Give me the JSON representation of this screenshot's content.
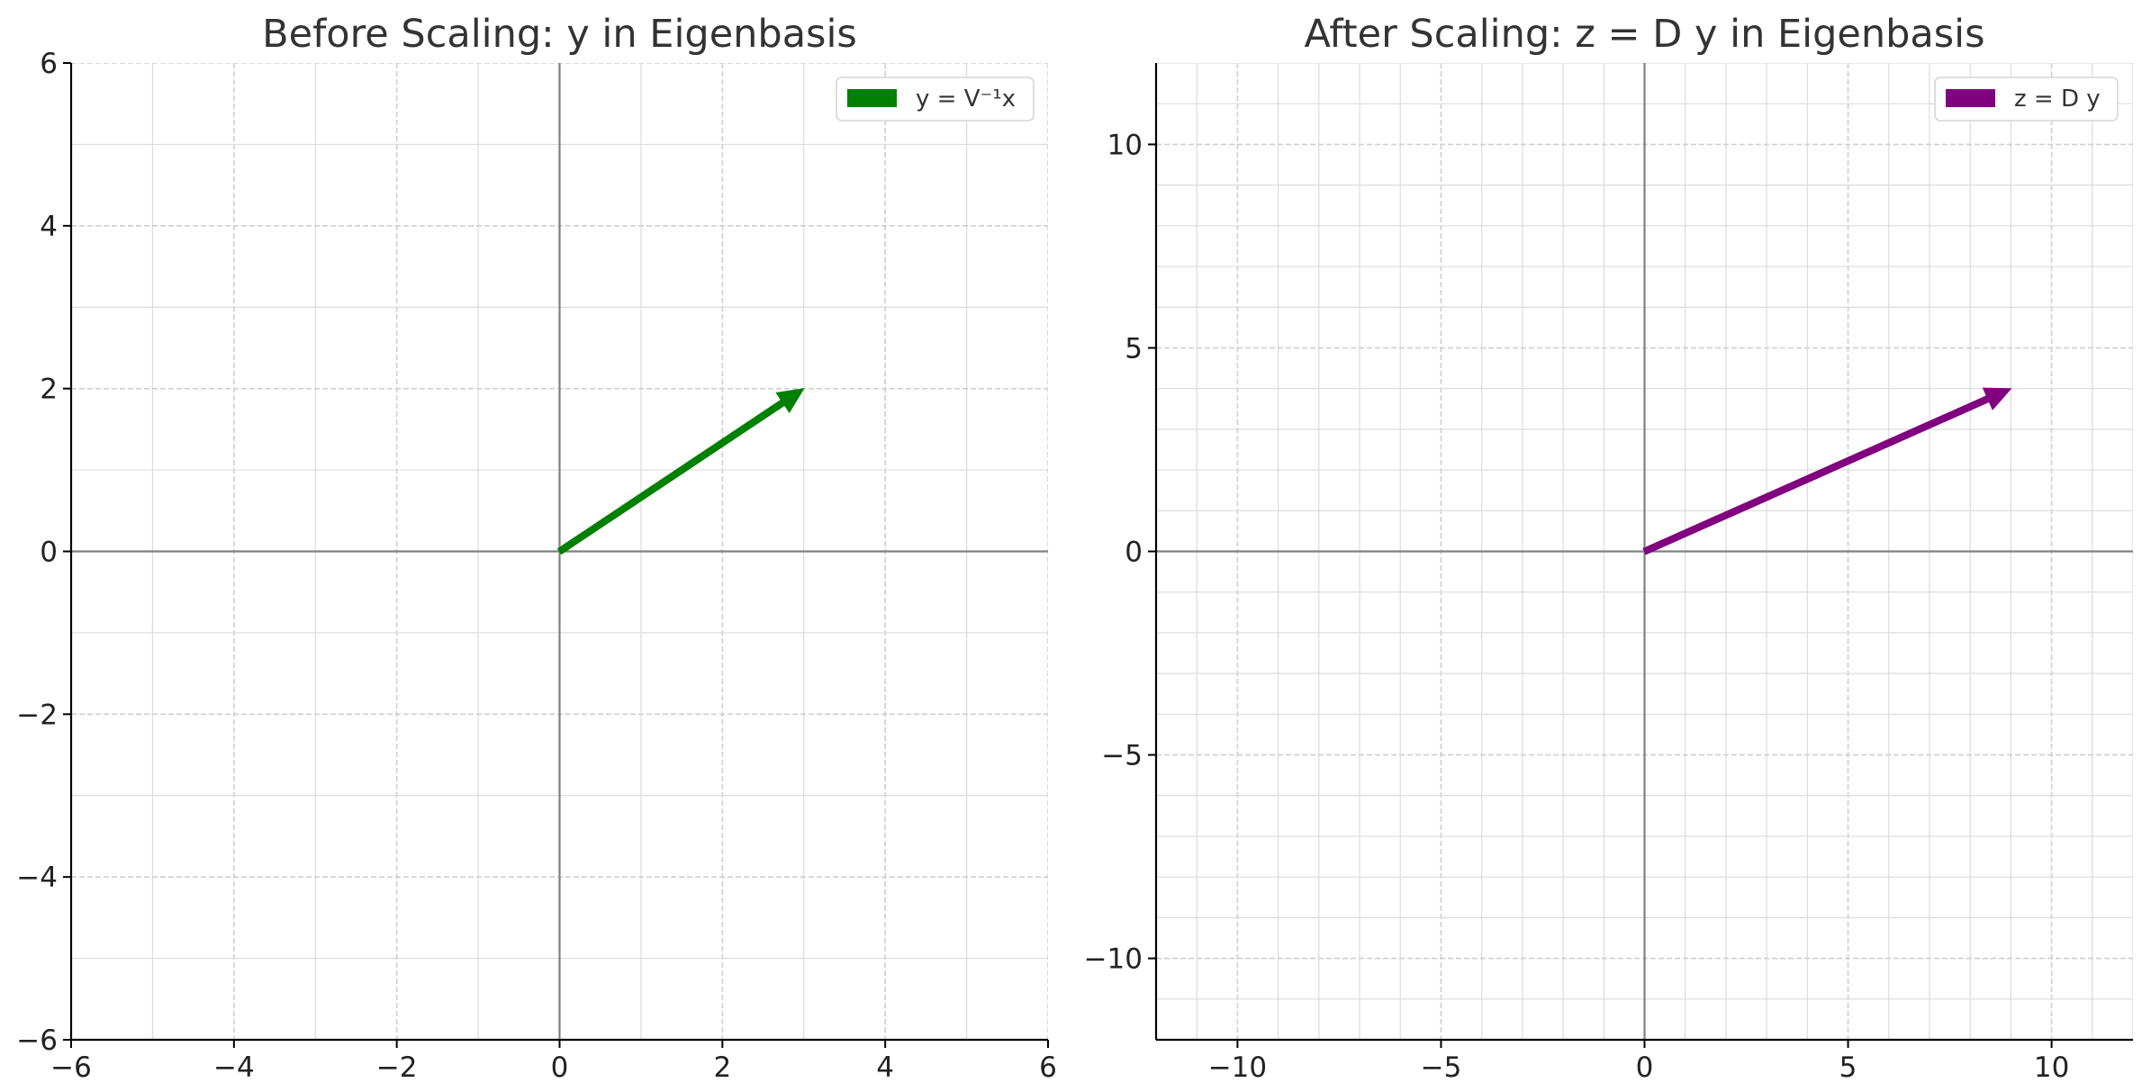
{
  "chart_data": [
    {
      "type": "quiver",
      "title": "Before Scaling: y in Eigenbasis",
      "xlabel": "",
      "ylabel": "",
      "xlim": [
        -6,
        6
      ],
      "ylim": [
        -6,
        6
      ],
      "xticks": [
        -6,
        -4,
        -2,
        0,
        2,
        4,
        6
      ],
      "yticks": [
        -6,
        -4,
        -2,
        0,
        2,
        4,
        6
      ],
      "xtick_labels": [
        "−6",
        "−4",
        "−2",
        "0",
        "2",
        "4",
        "6"
      ],
      "ytick_labels": [
        "−6",
        "−4",
        "−2",
        "0",
        "2",
        "4",
        "6"
      ],
      "minor_step": 1,
      "grid": true,
      "legend_position": "top-right",
      "series": [
        {
          "name": "y = V⁻¹x",
          "color": "#008000",
          "vectors": [
            {
              "x0": 0,
              "y0": 0,
              "dx": 3,
              "dy": 2
            }
          ]
        }
      ]
    },
    {
      "type": "quiver",
      "title": "After Scaling: z = D y in Eigenbasis",
      "xlabel": "",
      "ylabel": "",
      "xlim": [
        -12,
        12
      ],
      "ylim": [
        -12,
        12
      ],
      "xticks": [
        -10,
        -5,
        0,
        5,
        10
      ],
      "yticks": [
        -10,
        -5,
        0,
        5,
        10
      ],
      "xtick_labels": [
        "−10",
        "−5",
        "0",
        "5",
        "10"
      ],
      "ytick_labels": [
        "−10",
        "−5",
        "0",
        "5",
        "10"
      ],
      "minor_step": 1,
      "grid": true,
      "legend_position": "top-right",
      "series": [
        {
          "name": "z = D y",
          "color": "#800080",
          "vectors": [
            {
              "x0": 0,
              "y0": 0,
              "dx": 9,
              "dy": 4
            }
          ]
        }
      ]
    }
  ]
}
